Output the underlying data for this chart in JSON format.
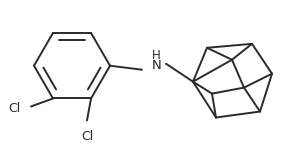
{
  "background_color": "#ffffff",
  "line_color": "#2a2a2a",
  "line_width": 1.4,
  "text_color": "#2a2a2a",
  "font_size": 9.5,
  "cl1_label": "Cl",
  "cl2_label": "Cl",
  "nh_label": "H\nN",
  "fig_width": 2.94,
  "fig_height": 1.47
}
